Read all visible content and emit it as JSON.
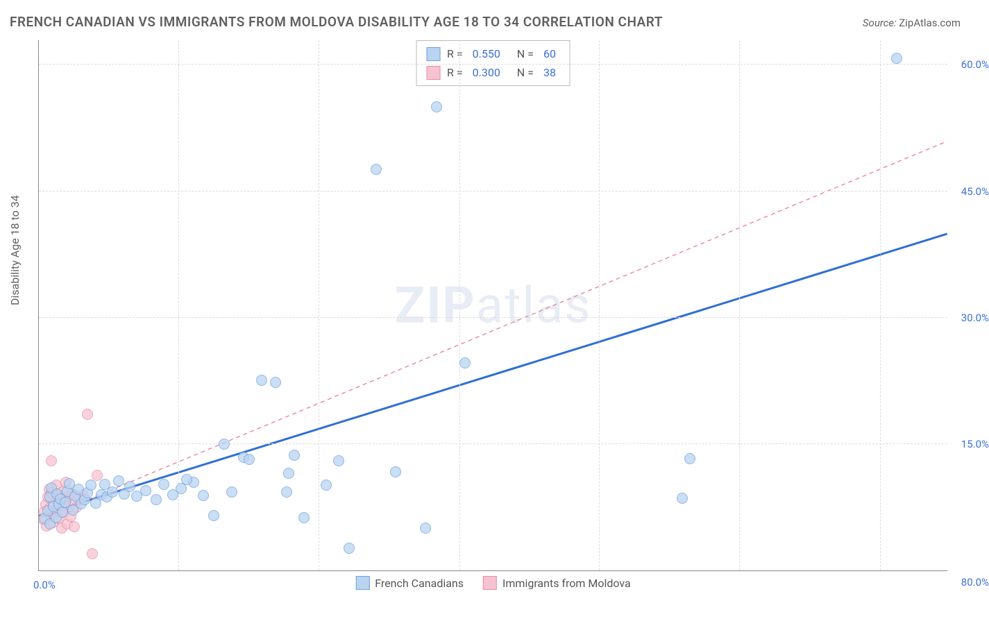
{
  "title": "FRENCH CANADIAN VS IMMIGRANTS FROM MOLDOVA DISABILITY AGE 18 TO 34 CORRELATION CHART",
  "source_label": "Source:",
  "source_value": "ZipAtlas.com",
  "ylabel": "Disability Age 18 to 34",
  "watermark_a": "ZIP",
  "watermark_b": "atlas",
  "chart": {
    "type": "scatter",
    "xlim": [
      0,
      80
    ],
    "ylim": [
      0,
      63
    ],
    "x_origin_label": "0.0%",
    "x_max_label": "80.0%",
    "y_ticks": [
      15,
      30,
      45,
      60
    ],
    "y_tick_labels": [
      "15.0%",
      "30.0%",
      "45.0%",
      "60.0%"
    ],
    "x_grid": [
      12.3,
      24.6,
      37,
      49.3,
      61.6,
      74
    ],
    "background_color": "#ffffff",
    "grid_color": "#dcdcdc",
    "axis_color": "#888888",
    "tick_label_color": "#3b6fd6",
    "marker_radius": 8,
    "series": [
      {
        "name": "French Canadians",
        "fill": "#b9d4f1",
        "stroke": "#6fa0de",
        "fill_opacity": 0.75,
        "r_value": "0.550",
        "n_value": "60",
        "trend": {
          "x1": 0,
          "y1": 6.5,
          "x2": 80,
          "y2": 40,
          "color": "#2f6fd6",
          "width": 3,
          "dash": "none"
        },
        "points": [
          [
            0.5,
            6.2
          ],
          [
            0.8,
            7.1
          ],
          [
            1.0,
            5.5
          ],
          [
            1.0,
            8.7
          ],
          [
            1.1,
            9.8
          ],
          [
            1.3,
            7.6
          ],
          [
            1.5,
            6.3
          ],
          [
            1.6,
            9.1
          ],
          [
            1.8,
            7.8
          ],
          [
            1.9,
            8.5
          ],
          [
            2.1,
            6.9
          ],
          [
            2.3,
            8.1
          ],
          [
            2.5,
            9.4
          ],
          [
            2.7,
            10.3
          ],
          [
            3.0,
            7.2
          ],
          [
            3.2,
            8.8
          ],
          [
            3.5,
            9.6
          ],
          [
            3.7,
            7.9
          ],
          [
            4.0,
            8.4
          ],
          [
            4.3,
            9.2
          ],
          [
            4.6,
            10.1
          ],
          [
            5.0,
            8.0
          ],
          [
            5.5,
            9.0
          ],
          [
            5.8,
            10.2
          ],
          [
            6.0,
            8.7
          ],
          [
            6.5,
            9.3
          ],
          [
            7.0,
            10.6
          ],
          [
            7.5,
            9.1
          ],
          [
            8.0,
            10.0
          ],
          [
            8.6,
            8.8
          ],
          [
            9.4,
            9.5
          ],
          [
            10.3,
            8.4
          ],
          [
            11.0,
            10.2
          ],
          [
            11.8,
            9.0
          ],
          [
            12.5,
            9.7
          ],
          [
            13.6,
            10.5
          ],
          [
            14.5,
            8.9
          ],
          [
            15.4,
            6.5
          ],
          [
            16.3,
            15.0
          ],
          [
            17.0,
            9.3
          ],
          [
            18.0,
            13.4
          ],
          [
            18.5,
            13.2
          ],
          [
            19.6,
            22.6
          ],
          [
            20.8,
            22.3
          ],
          [
            21.8,
            9.3
          ],
          [
            22.5,
            13.7
          ],
          [
            23.3,
            6.3
          ],
          [
            22.0,
            11.5
          ],
          [
            25.3,
            10.1
          ],
          [
            26.4,
            13.0
          ],
          [
            27.3,
            2.6
          ],
          [
            29.7,
            47.6
          ],
          [
            31.4,
            11.7
          ],
          [
            34.0,
            5.0
          ],
          [
            35.0,
            55.0
          ],
          [
            37.5,
            24.6
          ],
          [
            56.6,
            8.6
          ],
          [
            57.3,
            13.3
          ],
          [
            75.5,
            60.8
          ],
          [
            13.0,
            10.8
          ]
        ]
      },
      {
        "name": "Immigrants from Moldova",
        "fill": "#f6c3d1",
        "stroke": "#e98ba6",
        "fill_opacity": 0.75,
        "r_value": "0.300",
        "n_value": "38",
        "trend": {
          "x1": 0,
          "y1": 6.0,
          "x2": 80,
          "y2": 51,
          "color": "#e98ba6",
          "width": 1.5,
          "dash": "6,5"
        },
        "points": [
          [
            0.4,
            6.0
          ],
          [
            0.5,
            7.0
          ],
          [
            0.6,
            7.8
          ],
          [
            0.7,
            5.3
          ],
          [
            0.8,
            8.7
          ],
          [
            0.9,
            9.6
          ],
          [
            1.0,
            6.5
          ],
          [
            1.0,
            7.4
          ],
          [
            1.1,
            9.2
          ],
          [
            1.1,
            13.0
          ],
          [
            1.2,
            5.7
          ],
          [
            1.3,
            7.9
          ],
          [
            1.3,
            8.9
          ],
          [
            1.4,
            6.6
          ],
          [
            1.5,
            10.1
          ],
          [
            1.5,
            7.2
          ],
          [
            1.6,
            8.3
          ],
          [
            1.7,
            9.0
          ],
          [
            1.8,
            6.2
          ],
          [
            1.9,
            7.7
          ],
          [
            2.0,
            5.0
          ],
          [
            2.0,
            8.5
          ],
          [
            2.1,
            9.3
          ],
          [
            2.2,
            6.9
          ],
          [
            2.3,
            8.0
          ],
          [
            2.4,
            10.5
          ],
          [
            2.5,
            5.5
          ],
          [
            2.6,
            7.6
          ],
          [
            2.7,
            8.8
          ],
          [
            2.8,
            6.4
          ],
          [
            3.0,
            9.1
          ],
          [
            3.1,
            5.2
          ],
          [
            3.3,
            7.5
          ],
          [
            3.5,
            8.4
          ],
          [
            3.9,
            9.0
          ],
          [
            4.3,
            18.5
          ],
          [
            4.7,
            2.0
          ],
          [
            5.1,
            11.3
          ]
        ]
      }
    ]
  },
  "legend_bottom": [
    {
      "label": "French Canadians",
      "fill": "#b9d4f1",
      "stroke": "#6fa0de"
    },
    {
      "label": "Immigrants from Moldova",
      "fill": "#f6c3d1",
      "stroke": "#e98ba6"
    }
  ]
}
